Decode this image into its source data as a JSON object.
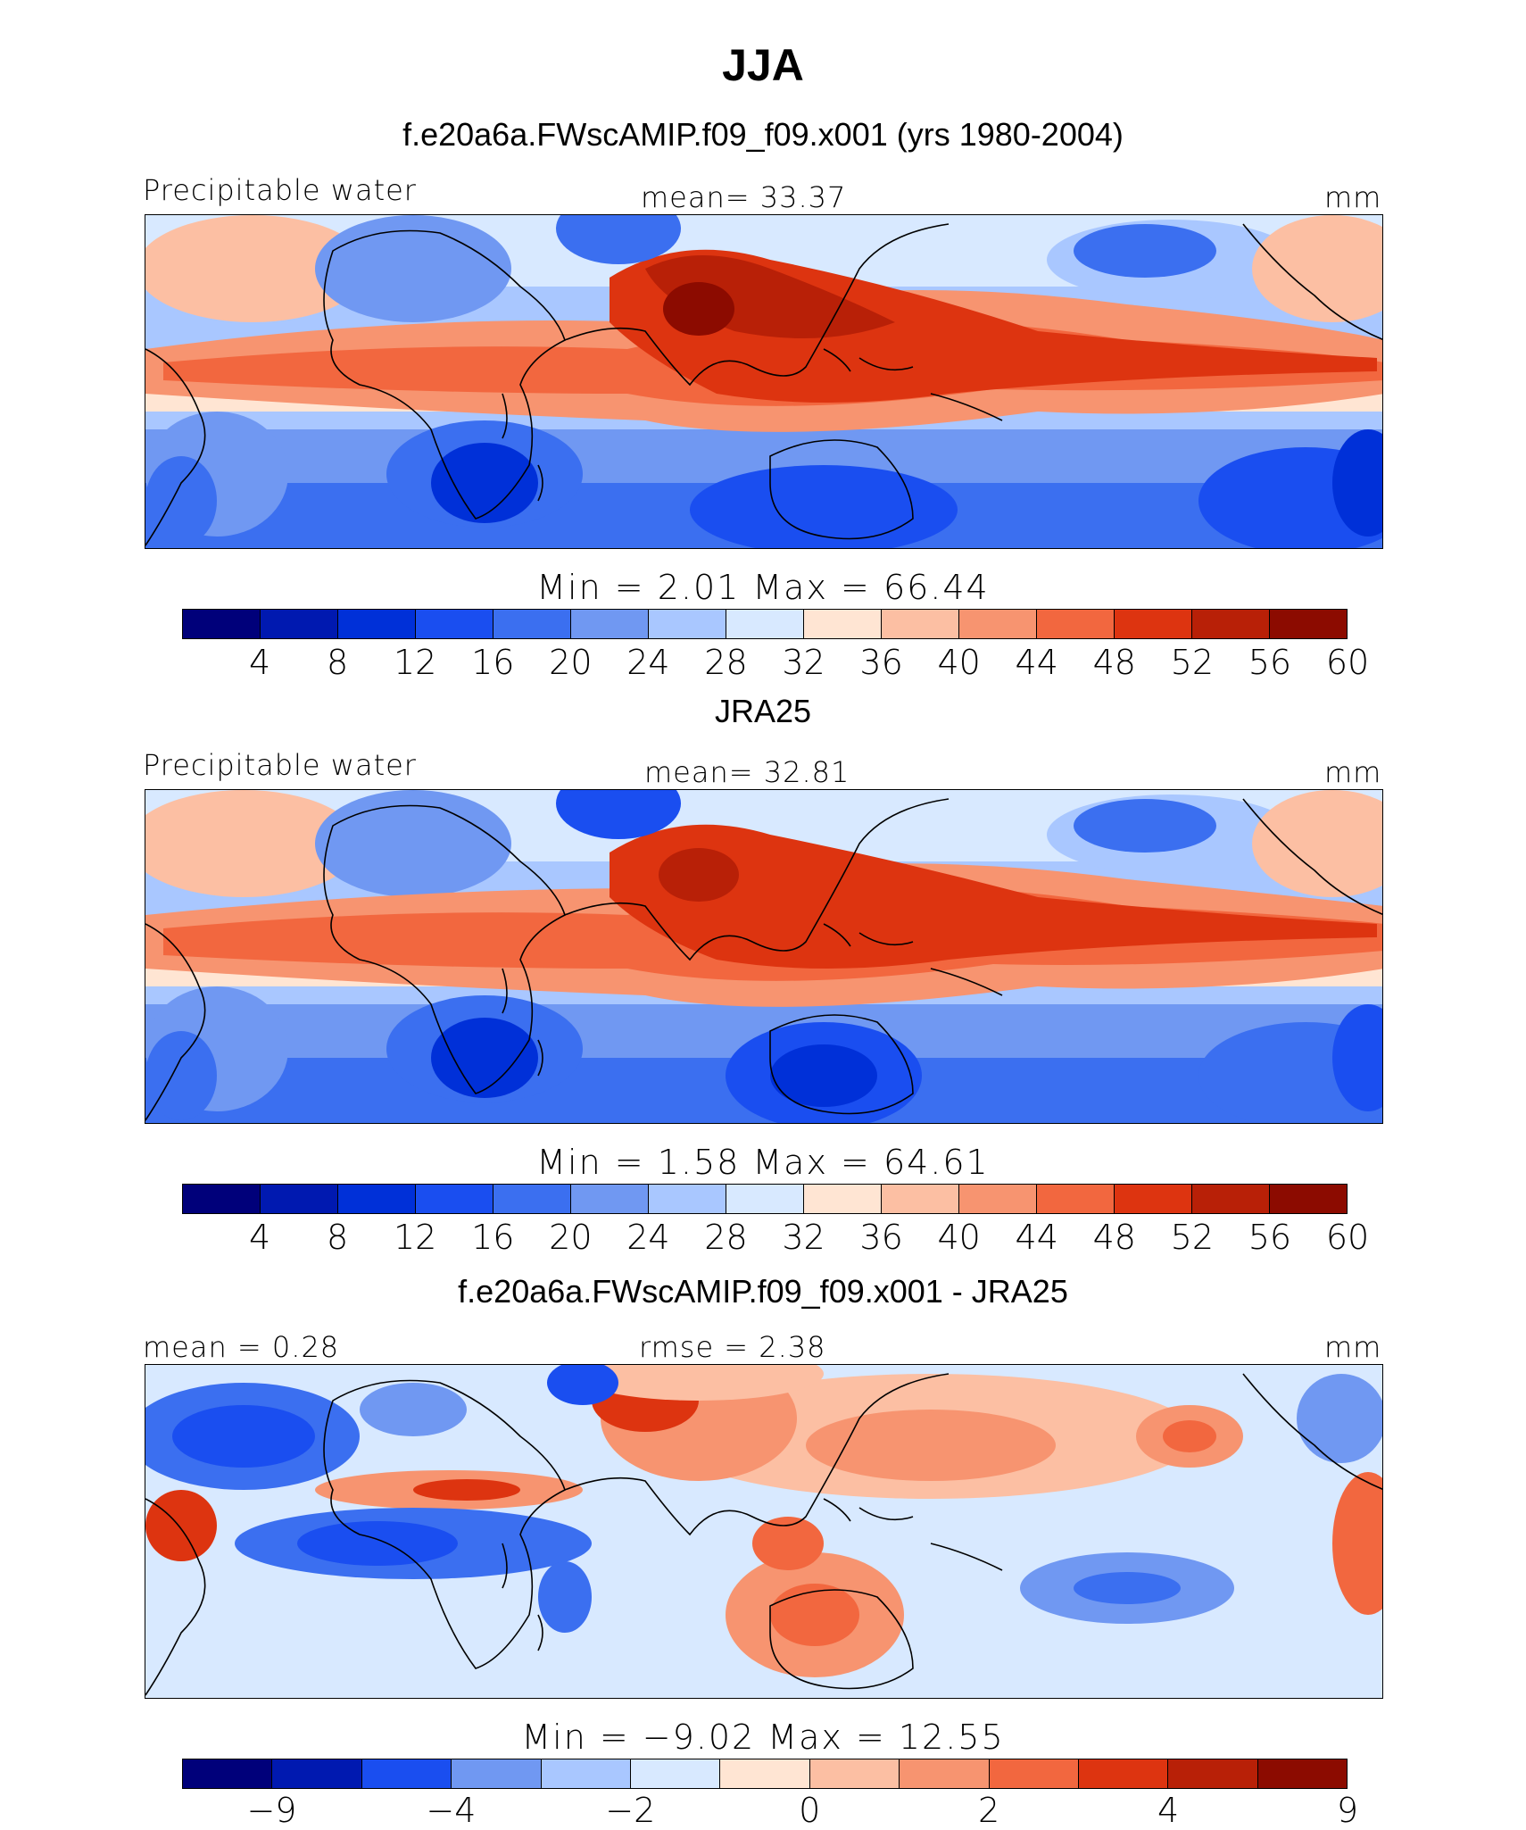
{
  "title": "JJA",
  "panel1": {
    "header": "f.e20a6a.FWscAMIP.f09_f09.x001 (yrs 1980-2004)",
    "left_label": "Precipitable water",
    "center_label": "mean=   33.37",
    "right_label": "mm",
    "minmax": "Min =    2.01  Max =   66.44"
  },
  "panel2": {
    "header": "JRA25",
    "left_label": "Precipitable water",
    "center_label": "mean=   32.81",
    "right_label": "mm",
    "minmax": "Min =    1.58  Max =   64.61"
  },
  "panel3": {
    "header": "f.e20a6a.FWscAMIP.f09_f09.x001 - JRA25",
    "left_label": "mean =   0.28",
    "center_label": "rmse =   2.38",
    "right_label": "mm",
    "minmax": "Min =  −9.02  Max =   12.55"
  },
  "colorbar_abs": {
    "ticks": [
      "4",
      "8",
      "12",
      "16",
      "20",
      "24",
      "28",
      "32",
      "36",
      "40",
      "44",
      "48",
      "52",
      "56",
      "60"
    ],
    "colors": [
      "#00007a",
      "#0019b0",
      "#0030d8",
      "#1a4ef0",
      "#3b6ff0",
      "#7098f2",
      "#a9c7ff",
      "#d8e9ff",
      "#ffe5d3",
      "#fcbfa3",
      "#f79470",
      "#f2673f",
      "#dd3410",
      "#b82007",
      "#8c0b00"
    ]
  },
  "colorbar_diff": {
    "ticks": [
      "−9",
      "−4",
      "−2",
      "0",
      "2",
      "4",
      "9"
    ],
    "colors": [
      "#00007a",
      "#0019b0",
      "#1a4ef0",
      "#7098f2",
      "#a9c7ff",
      "#d8e9ff",
      "#ffe5d3",
      "#fcbfa3",
      "#f79470",
      "#f2673f",
      "#dd3410",
      "#b82007",
      "#8c0b00"
    ]
  }
}
